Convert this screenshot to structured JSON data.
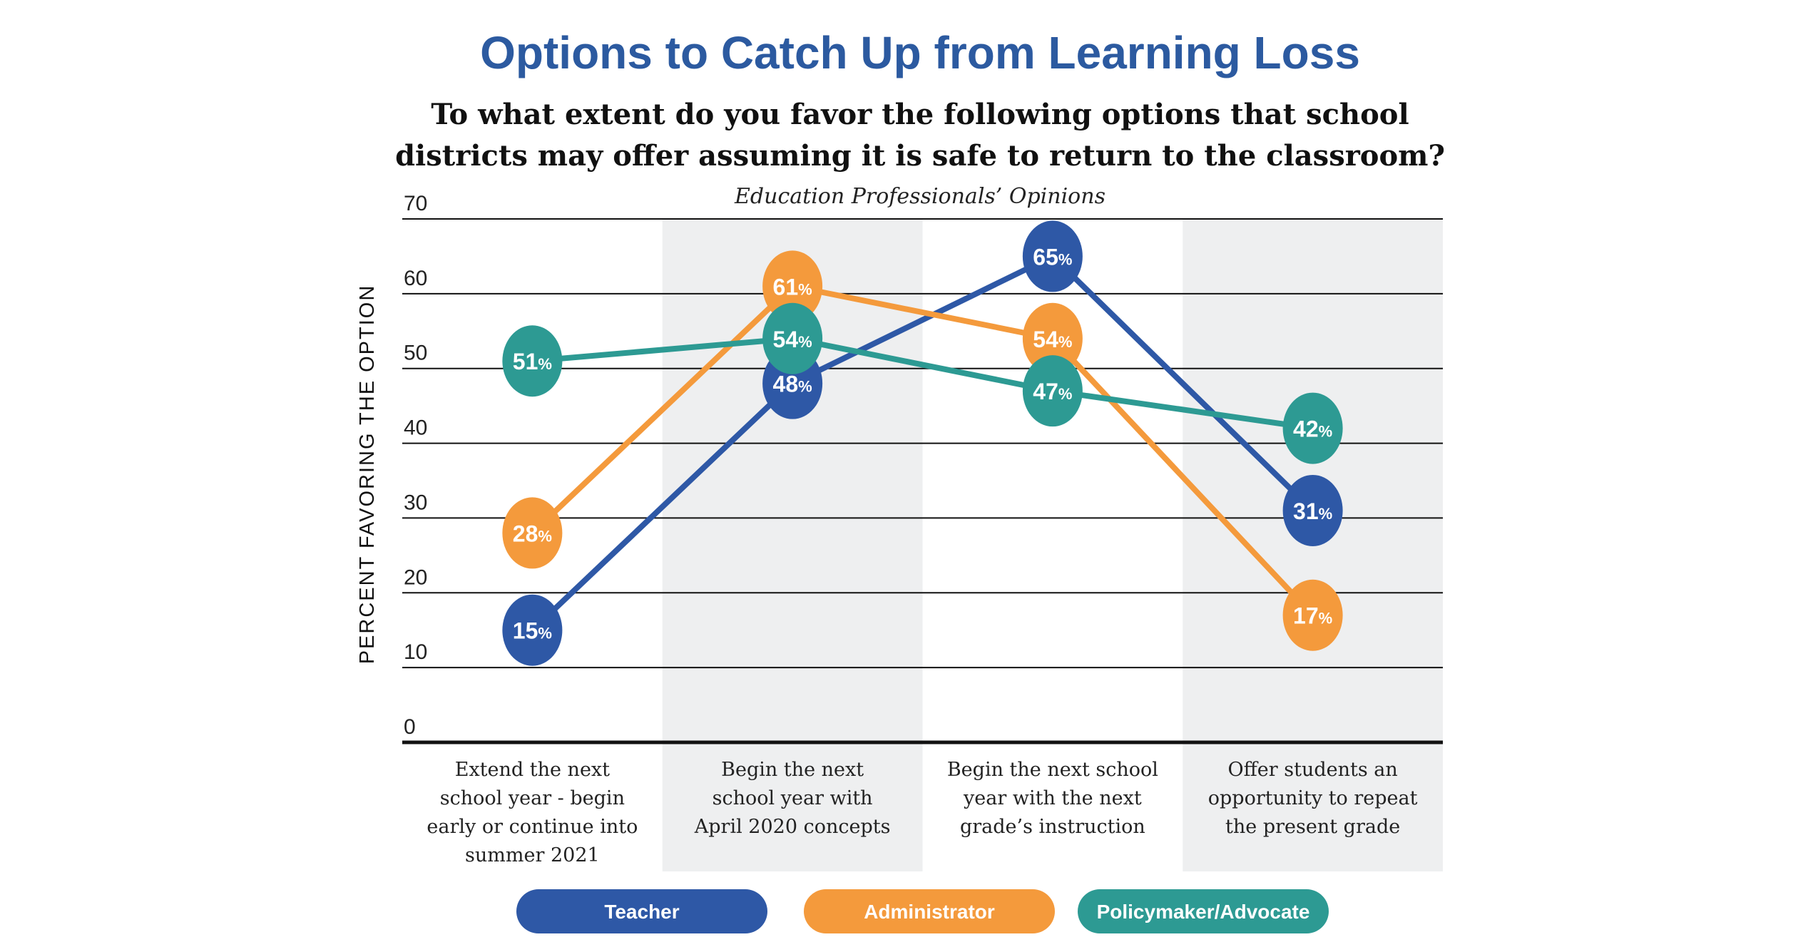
{
  "chart_data": {
    "type": "line",
    "title": "Options to Catch Up from Learning Loss",
    "subtitle_lines": [
      "To what extent do you favor the following options that school",
      "districts may offer assuming it is safe to return to the classroom?"
    ],
    "note": "Education Professionals’ Opinions",
    "ylabel": "PERCENT FAVORING THE OPTION",
    "xlabel": "",
    "ylim": [
      0,
      70
    ],
    "yticks": [
      "0",
      "10",
      "20",
      "30",
      "40",
      "50",
      "60",
      "70"
    ],
    "grid": true,
    "legend_placement": "bottom",
    "categories": [
      [
        "Extend the next",
        "school year - begin",
        "early or continue into",
        "summer 2021"
      ],
      [
        "Begin the next",
        "school year with",
        "April 2020 concepts"
      ],
      [
        "Begin the next school",
        "year with the next",
        "grade’s instruction"
      ],
      [
        "Offer students an",
        "opportunity to repeat",
        "the present grade"
      ]
    ],
    "series": [
      {
        "name": "Teacher",
        "color": "#2e58a6",
        "values": [
          15,
          48,
          65,
          31
        ]
      },
      {
        "name": "Administrator",
        "color": "#f49a3c",
        "values": [
          28,
          61,
          54,
          17
        ]
      },
      {
        "name": "Policymaker/Advocate",
        "color": "#2d9a93",
        "values": [
          51,
          54,
          47,
          42
        ]
      }
    ],
    "data_label_suffix": "%",
    "band_color": "#eeeff0"
  }
}
